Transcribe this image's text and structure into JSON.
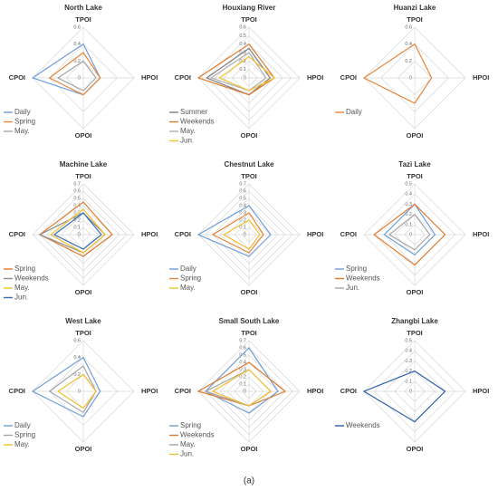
{
  "caption": "(a)",
  "chart_data": [
    {
      "type": "radar",
      "title": "North Lake",
      "categories": [
        "TPOI",
        "HPOI",
        "OPOI",
        "CPOI"
      ],
      "ylim": [
        0,
        0.6
      ],
      "yticks": [
        0,
        0.2,
        0.4,
        0.6
      ],
      "series": [
        {
          "name": "Daily",
          "color": "#6f9fd8",
          "values": [
            0.4,
            0.2,
            0.2,
            0.6
          ]
        },
        {
          "name": "Spring",
          "color": "#e8863a",
          "values": [
            0.3,
            0.2,
            0.2,
            0.4
          ]
        },
        {
          "name": "May.",
          "color": "#a5a5a5",
          "values": [
            0.2,
            0.15,
            0.15,
            0.3
          ]
        }
      ]
    },
    {
      "type": "radar",
      "title": "Houxiang River",
      "categories": [
        "TPOI",
        "HPOI",
        "OPOI",
        "CPOI"
      ],
      "ylim": [
        0,
        0.6
      ],
      "yticks": [
        0,
        0.1,
        0.2,
        0.3,
        0.4,
        0.5,
        0.6
      ],
      "series": [
        {
          "name": "Summer",
          "color": "#7f7f7f",
          "values": [
            0.35,
            0.25,
            0.2,
            0.5
          ]
        },
        {
          "name": "Weekends",
          "color": "#e07b2e",
          "values": [
            0.4,
            0.3,
            0.2,
            0.6
          ]
        },
        {
          "name": "May.",
          "color": "#b0b0b0",
          "values": [
            0.3,
            0.2,
            0.15,
            0.45
          ]
        },
        {
          "name": "Jun.",
          "color": "#f2c12e",
          "values": [
            0.25,
            0.3,
            0.15,
            0.35
          ]
        }
      ]
    },
    {
      "type": "radar",
      "title": "Huanzi Lake",
      "categories": [
        "TPOI",
        "HPOI",
        "OPOI",
        "CPOI"
      ],
      "ylim": [
        0,
        0.6
      ],
      "yticks": [
        0,
        0.2,
        0.4,
        0.6
      ],
      "series": [
        {
          "name": "Daily",
          "color": "#e8863a",
          "values": [
            0.4,
            0.2,
            0.3,
            0.6
          ]
        }
      ]
    },
    {
      "type": "radar",
      "title": "Machine Lake",
      "categories": [
        "TPOI",
        "HPOI",
        "OPOI",
        "CPOI"
      ],
      "ylim": [
        0,
        0.7
      ],
      "yticks": [
        0,
        0.1,
        0.2,
        0.3,
        0.4,
        0.5,
        0.6,
        0.7
      ],
      "series": [
        {
          "name": "Spring",
          "color": "#e07b2e",
          "values": [
            0.45,
            0.4,
            0.3,
            0.6
          ]
        },
        {
          "name": "Weekends",
          "color": "#8c8c8c",
          "values": [
            0.3,
            0.3,
            0.25,
            0.6
          ]
        },
        {
          "name": "May.",
          "color": "#f2c12e",
          "values": [
            0.35,
            0.3,
            0.25,
            0.45
          ]
        },
        {
          "name": "Jun.",
          "color": "#3a6fb0",
          "values": [
            0.3,
            0.25,
            0.2,
            0.4
          ]
        }
      ]
    },
    {
      "type": "radar",
      "title": "Chestnut Lake",
      "categories": [
        "TPOI",
        "HPOI",
        "OPOI",
        "CPOI"
      ],
      "ylim": [
        0,
        0.7
      ],
      "yticks": [
        0,
        0.1,
        0.2,
        0.3,
        0.4,
        0.5,
        0.6,
        0.7
      ],
      "series": [
        {
          "name": "Daily",
          "color": "#6f9fd8",
          "values": [
            0.4,
            0.3,
            0.3,
            0.7
          ]
        },
        {
          "name": "Spring",
          "color": "#e8863a",
          "values": [
            0.3,
            0.2,
            0.25,
            0.5
          ]
        },
        {
          "name": "May.",
          "color": "#f2c12e",
          "values": [
            0.2,
            0.15,
            0.2,
            0.35
          ]
        }
      ]
    },
    {
      "type": "radar",
      "title": "Tazi Lake",
      "categories": [
        "TPOI",
        "HPOI",
        "OPOI",
        "CPOI"
      ],
      "ylim": [
        0,
        0.5
      ],
      "yticks": [
        0,
        0.1,
        0.2,
        0.3,
        0.4,
        0.5
      ],
      "series": [
        {
          "name": "Spring",
          "color": "#6f9fd8",
          "values": [
            0.3,
            0.2,
            0.2,
            0.3
          ]
        },
        {
          "name": "Weekends",
          "color": "#e07b2e",
          "values": [
            0.3,
            0.3,
            0.3,
            0.4
          ]
        },
        {
          "name": "Jun.",
          "color": "#a5a5a5",
          "values": [
            0.2,
            0.15,
            0.15,
            0.25
          ]
        }
      ]
    },
    {
      "type": "radar",
      "title": "West Lake",
      "categories": [
        "TPOI",
        "HPOI",
        "OPOI",
        "CPOI"
      ],
      "ylim": [
        0,
        0.6
      ],
      "yticks": [
        0,
        0.2,
        0.4,
        0.6
      ],
      "series": [
        {
          "name": "Daily",
          "color": "#6f9fd8",
          "values": [
            0.4,
            0.2,
            0.3,
            0.6
          ]
        },
        {
          "name": "Spring",
          "color": "#a5a5a5",
          "values": [
            0.3,
            0.15,
            0.25,
            0.4
          ]
        },
        {
          "name": "May.",
          "color": "#f2c12e",
          "values": [
            0.2,
            0.15,
            0.2,
            0.3
          ]
        }
      ]
    },
    {
      "type": "radar",
      "title": "Small South Lake",
      "categories": [
        "TPOI",
        "HPOI",
        "OPOI",
        "CPOI"
      ],
      "ylim": [
        0,
        0.7
      ],
      "yticks": [
        0,
        0.1,
        0.2,
        0.3,
        0.4,
        0.5,
        0.6,
        0.7
      ],
      "series": [
        {
          "name": "Spring",
          "color": "#6f9fd8",
          "values": [
            0.6,
            0.4,
            0.3,
            0.6
          ]
        },
        {
          "name": "Weekends",
          "color": "#e07b2e",
          "values": [
            0.4,
            0.5,
            0.2,
            0.7
          ]
        },
        {
          "name": "May.",
          "color": "#a5a5a5",
          "values": [
            0.3,
            0.3,
            0.2,
            0.6
          ]
        },
        {
          "name": "Jun.",
          "color": "#f2c12e",
          "values": [
            0.3,
            0.3,
            0.2,
            0.5
          ]
        }
      ]
    },
    {
      "type": "radar",
      "title": "Zhangbi Lake",
      "categories": [
        "TPOI",
        "HPOI",
        "OPOI",
        "CPOI"
      ],
      "ylim": [
        0,
        0.5
      ],
      "yticks": [
        0,
        0.1,
        0.2,
        0.3,
        0.4,
        0.5
      ],
      "series": [
        {
          "name": "Weekends",
          "color": "#2e5fa8",
          "values": [
            0.2,
            0.3,
            0.3,
            0.5
          ]
        }
      ]
    }
  ]
}
